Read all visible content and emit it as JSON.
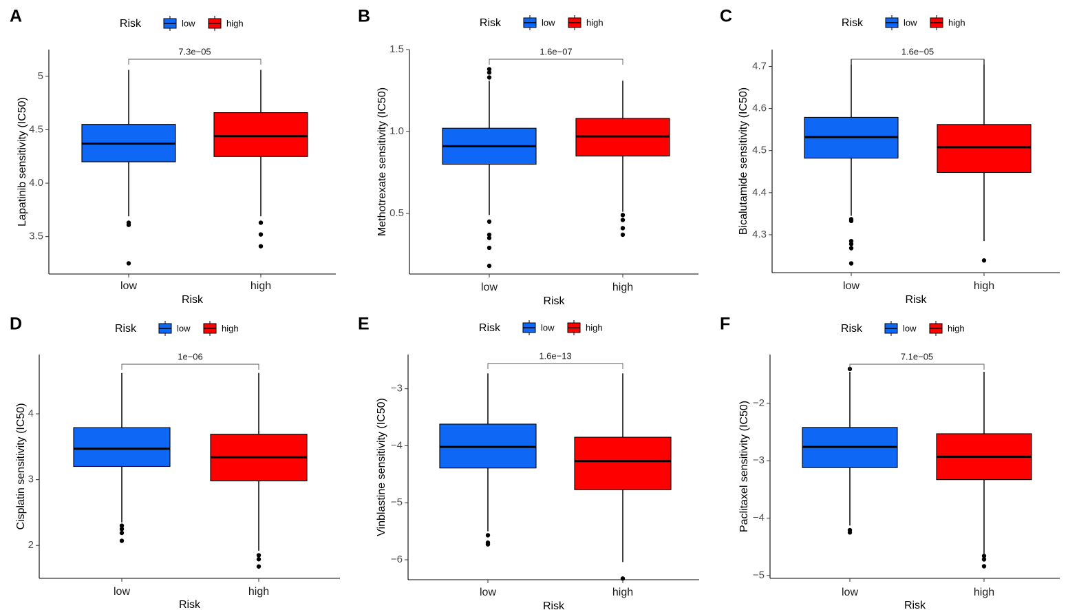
{
  "legend": {
    "title": "Risk",
    "items": [
      {
        "label": "low",
        "color": "#0F68F5"
      },
      {
        "label": "high",
        "color": "#FF0000"
      }
    ]
  },
  "chart_data": [
    {
      "panel": "A",
      "type": "box",
      "xlabel": "Risk",
      "ylabel": "Lapatinib sensitivity (IC50)",
      "categories": [
        "low",
        "high"
      ],
      "ylim": [
        3.15,
        5.25
      ],
      "yticks": [
        3.5,
        4.0,
        4.5,
        5.0
      ],
      "ytick_labels": [
        "3.5",
        "4.0",
        "4.5",
        5.0
      ],
      "p_value": "7.3e−05",
      "boxes": [
        {
          "category": "low",
          "min": 3.69,
          "q1": 4.2,
          "median": 4.37,
          "q3": 4.55,
          "max": 5.06,
          "outliers": [
            3.63,
            3.61,
            3.25
          ]
        },
        {
          "category": "high",
          "min": 3.69,
          "q1": 4.25,
          "median": 4.44,
          "q3": 4.66,
          "max": 5.06,
          "outliers": [
            3.63,
            3.52,
            3.41
          ]
        }
      ]
    },
    {
      "panel": "B",
      "type": "box",
      "xlabel": "Risk",
      "ylabel": "Methotrexate sensitivity (IC50)",
      "categories": [
        "low",
        "high"
      ],
      "ylim": [
        0.13,
        1.5
      ],
      "yticks": [
        0.5,
        1.0,
        1.5
      ],
      "ytick_labels": [
        "0.5",
        "1.0",
        "1.5"
      ],
      "p_value": "1.6e−07",
      "boxes": [
        {
          "category": "low",
          "min": 0.49,
          "q1": 0.8,
          "median": 0.91,
          "q3": 1.02,
          "max": 1.31,
          "outliers": [
            1.38,
            1.36,
            1.33,
            0.45,
            0.37,
            0.35,
            0.29,
            0.18
          ]
        },
        {
          "category": "high",
          "min": 0.51,
          "q1": 0.85,
          "median": 0.97,
          "q3": 1.08,
          "max": 1.31,
          "outliers": [
            0.49,
            0.46,
            0.41,
            0.37
          ]
        }
      ]
    },
    {
      "panel": "C",
      "type": "box",
      "xlabel": "Risk",
      "ylabel": "Bicalutamide sensitivity (IC50)",
      "categories": [
        "low",
        "high"
      ],
      "ylim": [
        4.21,
        4.74
      ],
      "yticks": [
        4.3,
        4.4,
        4.5,
        4.6,
        4.7
      ],
      "ytick_labels": [
        "4.3",
        "4.4",
        "4.5",
        "4.6",
        "4.7"
      ],
      "p_value": "1.6e−05",
      "boxes": [
        {
          "category": "low",
          "min": 4.345,
          "q1": 4.482,
          "median": 4.532,
          "q3": 4.579,
          "max": 4.717,
          "outliers": [
            4.337,
            4.333,
            4.285,
            4.278,
            4.268,
            4.232
          ]
        },
        {
          "category": "high",
          "min": 4.285,
          "q1": 4.448,
          "median": 4.508,
          "q3": 4.562,
          "max": 4.717,
          "outliers": [
            4.239
          ]
        }
      ]
    },
    {
      "panel": "D",
      "type": "box",
      "xlabel": "Risk",
      "ylabel": "Cisplatin sensitivity (IC50)",
      "categories": [
        "low",
        "high"
      ],
      "ylim": [
        1.5,
        4.9
      ],
      "yticks": [
        2,
        3,
        4
      ],
      "ytick_labels": [
        "2",
        "3",
        "4"
      ],
      "p_value": "1e−06",
      "boxes": [
        {
          "category": "low",
          "min": 2.35,
          "q1": 3.2,
          "median": 3.47,
          "q3": 3.79,
          "max": 4.62,
          "outliers": [
            2.3,
            2.25,
            2.19,
            2.07
          ]
        },
        {
          "category": "high",
          "min": 1.92,
          "q1": 2.98,
          "median": 3.34,
          "q3": 3.69,
          "max": 4.62,
          "outliers": [
            1.85,
            1.79,
            1.68
          ]
        }
      ]
    },
    {
      "panel": "E",
      "type": "box",
      "xlabel": "Risk",
      "ylabel": "Vinblastine sensitivity (IC50)",
      "categories": [
        "low",
        "high"
      ],
      "ylim": [
        -6.35,
        -2.4
      ],
      "yticks": [
        -6,
        -5,
        -4,
        -3
      ],
      "ytick_labels": [
        "−6",
        "−5",
        "−4",
        "−3"
      ],
      "p_value": "1.6e−13",
      "boxes": [
        {
          "category": "low",
          "min": -5.5,
          "q1": -4.39,
          "median": -4.02,
          "q3": -3.62,
          "max": -2.73,
          "outliers": [
            -5.57,
            -5.7,
            -5.73
          ]
        },
        {
          "category": "high",
          "min": -6.04,
          "q1": -4.77,
          "median": -4.27,
          "q3": -3.85,
          "max": -2.73,
          "outliers": [
            -6.33
          ]
        }
      ]
    },
    {
      "panel": "F",
      "type": "box",
      "xlabel": "Risk",
      "ylabel": "Paclitaxel sensitivity (IC50)",
      "categories": [
        "low",
        "high"
      ],
      "ylim": [
        -5.05,
        -1.15
      ],
      "yticks": [
        -5,
        -4,
        -3,
        -2
      ],
      "ytick_labels": [
        "−5",
        "−4",
        "−3",
        "−2"
      ],
      "p_value": "7.1e−05",
      "boxes": [
        {
          "category": "low",
          "min": -4.13,
          "q1": -3.12,
          "median": -2.76,
          "q3": -2.42,
          "max": -1.45,
          "outliers": [
            -1.4,
            -4.21,
            -4.25
          ]
        },
        {
          "category": "high",
          "min": -4.62,
          "q1": -3.33,
          "median": -2.93,
          "q3": -2.53,
          "max": -1.45,
          "outliers": [
            -4.66,
            -4.72,
            -4.84
          ]
        }
      ]
    }
  ]
}
